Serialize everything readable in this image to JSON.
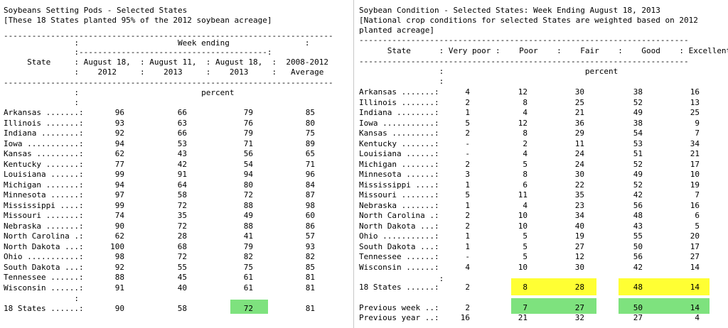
{
  "colors": {
    "yellow_highlight": "#ffff33",
    "green_highlight": "#7ee27e",
    "divider": "#c8c8c8"
  },
  "pods": {
    "title": "Soybeans Setting Pods - Selected States",
    "subtitle": "[These 18 States planted 95% of the 2012 soybean acreage]",
    "rule": "----------------------------------------------------------------------",
    "hdr1": "               :                     Week ending                :",
    "hdr2": "               :----------------------------------------:",
    "hdr3": "     State     : August 18,  : August 11,  : August 18,  :  2008-2012",
    "hdr4": "               :    2012     :    2013     :    2013     :   Average",
    "rule2": "----------------------------------------------------------------------",
    "unit1": "               :                          percent",
    "unit2": "               :",
    "rows": [
      [
        "Arkansas .......:",
        "96",
        "66",
        "79",
        "85"
      ],
      [
        "Illinois .......:",
        "93",
        "63",
        "76",
        "80"
      ],
      [
        "Indiana ........:",
        "92",
        "66",
        "79",
        "75"
      ],
      [
        "Iowa ...........:",
        "94",
        "53",
        "71",
        "89"
      ],
      [
        "Kansas .........:",
        "62",
        "43",
        "56",
        "65"
      ],
      [
        "Kentucky .......:",
        "77",
        "42",
        "54",
        "71"
      ],
      [
        "Louisiana ......:",
        "99",
        "91",
        "94",
        "96"
      ],
      [
        "Michigan .......:",
        "94",
        "64",
        "80",
        "84"
      ],
      [
        "Minnesota ......:",
        "97",
        "58",
        "72",
        "87"
      ],
      [
        "Mississippi ....:",
        "99",
        "72",
        "88",
        "98"
      ],
      [
        "Missouri .......:",
        "74",
        "35",
        "49",
        "60"
      ],
      [
        "Nebraska .......:",
        "90",
        "72",
        "88",
        "86"
      ],
      [
        "North Carolina .:",
        "62",
        "28",
        "41",
        "57"
      ],
      [
        "North Dakota ...:",
        "100",
        "68",
        "79",
        "93"
      ],
      [
        "Ohio ...........:",
        "98",
        "72",
        "82",
        "82"
      ],
      [
        "South Dakota ...:",
        "92",
        "55",
        "75",
        "85"
      ],
      [
        "Tennessee ......:",
        "88",
        "45",
        "61",
        "81"
      ],
      [
        "Wisconsin ......:",
        "91",
        "40",
        "61",
        "81"
      ]
    ],
    "sep": "               :",
    "total": [
      "18 States ......:",
      "90",
      "58",
      "72",
      "81"
    ]
  },
  "condition": {
    "title": "Soybean Condition - Selected States: Week Ending August 18, 2013",
    "subtitle1": "[National crop conditions for selected States are weighted based on 2012",
    "subtitle2": "planted acreage]",
    "rule": "----------------------------------------------------------------------",
    "hdr": "      State      : Very poor :    Poor    :    Fair    :    Good    : Excellent",
    "rule2": "----------------------------------------------------------------------",
    "unit1": "                 :                              percent",
    "unit2": "                 :",
    "rows": [
      [
        "Arkansas .......:",
        "4",
        "12",
        "30",
        "38",
        "16"
      ],
      [
        "Illinois .......:",
        "2",
        "8",
        "25",
        "52",
        "13"
      ],
      [
        "Indiana ........:",
        "1",
        "4",
        "21",
        "49",
        "25"
      ],
      [
        "Iowa ...........:",
        "5",
        "12",
        "36",
        "38",
        "9"
      ],
      [
        "Kansas .........:",
        "2",
        "8",
        "29",
        "54",
        "7"
      ],
      [
        "Kentucky .......:",
        "-",
        "2",
        "11",
        "53",
        "34"
      ],
      [
        "Louisiana ......:",
        "-",
        "4",
        "24",
        "51",
        "21"
      ],
      [
        "Michigan .......:",
        "2",
        "5",
        "24",
        "52",
        "17"
      ],
      [
        "Minnesota ......:",
        "3",
        "8",
        "30",
        "49",
        "10"
      ],
      [
        "Mississippi ....:",
        "1",
        "6",
        "22",
        "52",
        "19"
      ],
      [
        "Missouri .......:",
        "5",
        "11",
        "35",
        "42",
        "7"
      ],
      [
        "Nebraska .......:",
        "1",
        "4",
        "23",
        "56",
        "16"
      ],
      [
        "North Carolina .:",
        "2",
        "10",
        "34",
        "48",
        "6"
      ],
      [
        "North Dakota ...:",
        "2",
        "10",
        "40",
        "43",
        "5"
      ],
      [
        "Ohio ...........:",
        "1",
        "5",
        "19",
        "55",
        "20"
      ],
      [
        "South Dakota ...:",
        "1",
        "5",
        "27",
        "50",
        "17"
      ],
      [
        "Tennessee ......:",
        "-",
        "5",
        "12",
        "56",
        "27"
      ],
      [
        "Wisconsin ......:",
        "4",
        "10",
        "30",
        "42",
        "14"
      ]
    ],
    "sep": "                 :",
    "states18": [
      "18 States ......:",
      "2",
      "8",
      "28",
      "48",
      "14"
    ],
    "prev_week": [
      "Previous week ..:",
      "2",
      "7",
      "27",
      "50",
      "14"
    ],
    "prev_year": [
      "Previous year ..:",
      "16",
      "21",
      "32",
      "27",
      "4"
    ]
  }
}
